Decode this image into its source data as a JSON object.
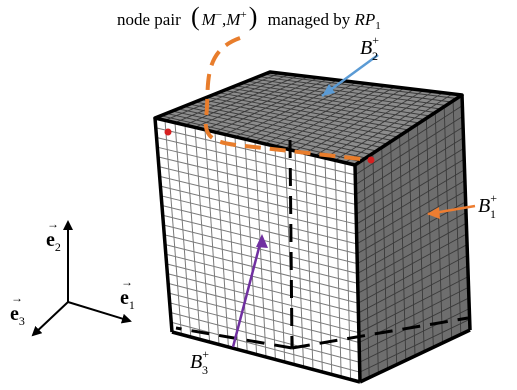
{
  "caption": {
    "prefix": "node pair",
    "m_minus_base": "M",
    "m_minus_sup": "−",
    "comma": ",",
    "m_plus_base": "M",
    "m_plus_sup": "+",
    "middle": "managed by",
    "rp_base": "RP",
    "rp_sub": "1"
  },
  "labels": {
    "b2": {
      "base": "B",
      "sub": "2",
      "sup": "+"
    },
    "b1": {
      "base": "B",
      "sub": "1",
      "sup": "+"
    },
    "b3": {
      "base": "B",
      "sub": "3",
      "sup": "+"
    }
  },
  "axes": {
    "e1": {
      "base": "e",
      "sub": "1",
      "arrow": "→"
    },
    "e2": {
      "base": "e",
      "sub": "2",
      "arrow": "→"
    },
    "e3": {
      "base": "e",
      "sub": "3",
      "arrow": "→"
    }
  },
  "colors": {
    "top_face": "#8c8c8c",
    "right_face": "#6e6e6e",
    "front_face": "#ffffff",
    "grid_dark": "#3a3a3a",
    "grid_light": "#7a7a7a",
    "edge": "#000000",
    "managed_path": "#e87d2c",
    "node_dot": "#d62020",
    "b2_arrow": "#5b9bd5",
    "b1_arrow": "#ed7d31",
    "b3_arrow": "#7030a0"
  }
}
